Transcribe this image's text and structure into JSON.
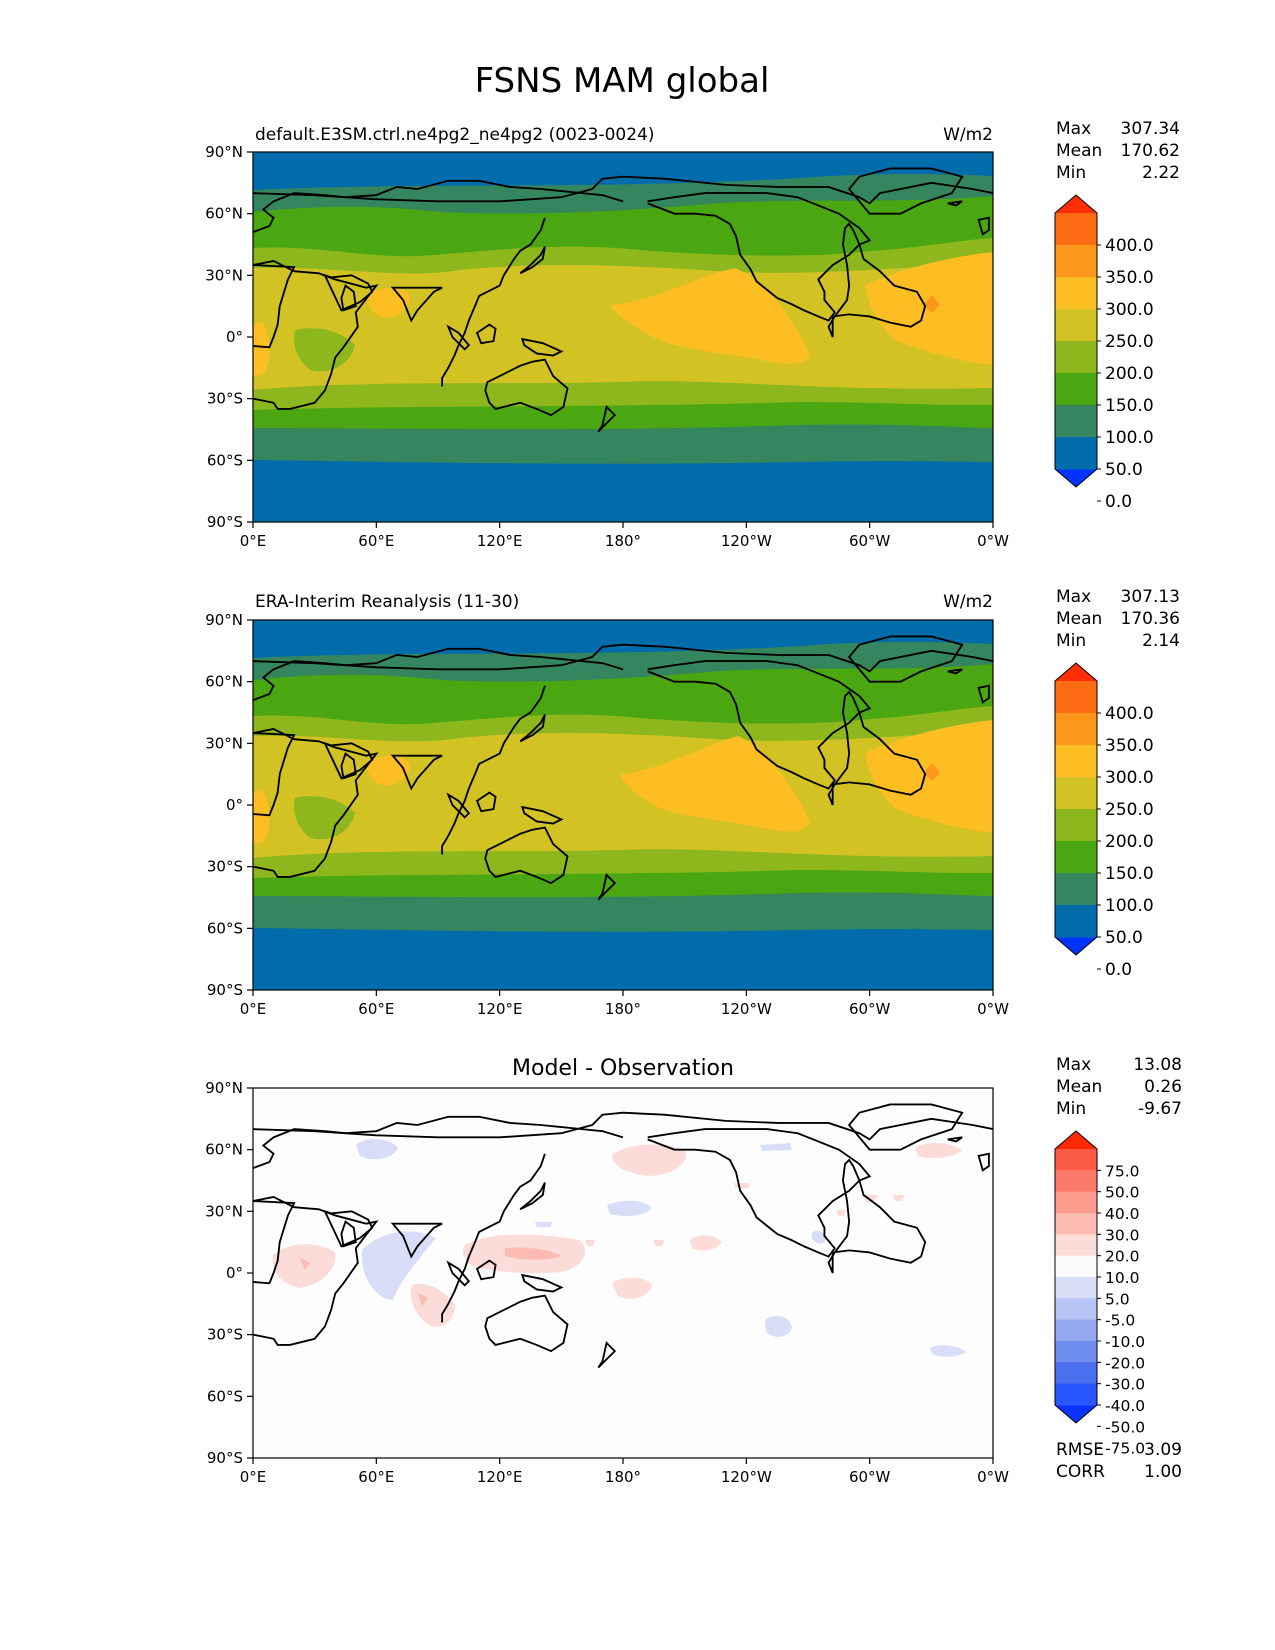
{
  "title": "FSNS MAM global",
  "colors": {
    "cmap_main": [
      "#0033ff",
      "#006cac",
      "#35855e",
      "#4aa711",
      "#8db71c",
      "#d2c224",
      "#fcbe22",
      "#fd971b",
      "#fd6b12",
      "#ff2e04"
    ],
    "cmap_diff": [
      "#0a33ff",
      "#2955ff",
      "#4a6fef",
      "#6f8ef0",
      "#94a9f2",
      "#b6c3f5",
      "#d8def7",
      "#fafafa",
      "#fbdcd8",
      "#fbbab2",
      "#fb9a8d",
      "#fb7a69",
      "#fb5a45",
      "#ff2a05"
    ],
    "coastline": "#000000"
  },
  "x_ticks": [
    "0°E",
    "60°E",
    "120°E",
    "180°",
    "120°W",
    "60°W",
    "0°W"
  ],
  "y_ticks": [
    "90°N",
    "60°N",
    "30°N",
    "0°",
    "30°S",
    "60°S",
    "90°S"
  ],
  "chart_data": [
    {
      "type": "heatmap",
      "panel_title": "default.E3SM.ctrl.ne4pg2_ne4pg2 (0023-0024)",
      "units": "W/m2",
      "stats": {
        "Max": "307.34",
        "Mean": "170.62",
        "Min": "2.22"
      },
      "colorbar_levels": [
        "400.0",
        "350.0",
        "300.0",
        "250.0",
        "200.0",
        "150.0",
        "100.0",
        "50.0",
        "0.0"
      ],
      "colorbar_extend": "both",
      "zonal_bands": [
        {
          "lat": [
            90,
            78
          ],
          "range": "0-50"
        },
        {
          "lat": [
            78,
            65
          ],
          "range": "50-100"
        },
        {
          "lat": [
            65,
            48
          ],
          "range": "100-150"
        },
        {
          "lat": [
            48,
            30
          ],
          "range": "150-200"
        },
        {
          "lat": [
            30,
            -20
          ],
          "range": "200-250"
        },
        {
          "lat": [
            -20,
            -34
          ],
          "range": "150-200"
        },
        {
          "lat": [
            -34,
            -44
          ],
          "range": "100-150"
        },
        {
          "lat": [
            -44,
            -62
          ],
          "range": "50-100"
        },
        {
          "lat": [
            -62,
            -90
          ],
          "range": "0-50"
        }
      ]
    },
    {
      "type": "heatmap",
      "panel_title": "ERA-Interim Reanalysis (11-30)",
      "units": "W/m2",
      "stats": {
        "Max": "307.13",
        "Mean": "170.36",
        "Min": "2.14"
      },
      "colorbar_levels": [
        "400.0",
        "350.0",
        "300.0",
        "250.0",
        "200.0",
        "150.0",
        "100.0",
        "50.0",
        "0.0"
      ],
      "colorbar_extend": "both",
      "zonal_bands": [
        {
          "lat": [
            90,
            78
          ],
          "range": "0-50"
        },
        {
          "lat": [
            78,
            65
          ],
          "range": "50-100"
        },
        {
          "lat": [
            65,
            48
          ],
          "range": "100-150"
        },
        {
          "lat": [
            48,
            30
          ],
          "range": "150-200"
        },
        {
          "lat": [
            30,
            -20
          ],
          "range": "200-250"
        },
        {
          "lat": [
            -20,
            -34
          ],
          "range": "150-200"
        },
        {
          "lat": [
            -34,
            -44
          ],
          "range": "100-150"
        },
        {
          "lat": [
            -44,
            -62
          ],
          "range": "50-100"
        },
        {
          "lat": [
            -62,
            -90
          ],
          "range": "0-50"
        }
      ]
    },
    {
      "type": "heatmap",
      "panel_title": "Model - Observation",
      "units": "",
      "stats": {
        "Max": "13.08",
        "Mean": "0.26",
        "Min": "-9.67"
      },
      "colorbar_levels": [
        "75.0",
        "50.0",
        "40.0",
        "30.0",
        "20.0",
        "10.0",
        "5.0",
        "-5.0",
        "-10.0",
        "-20.0",
        "-30.0",
        "-40.0",
        "-50.0",
        "-75.0"
      ],
      "colorbar_extend": "both",
      "metrics": {
        "RMSE": "3.09",
        "CORR": "1.00"
      }
    }
  ]
}
